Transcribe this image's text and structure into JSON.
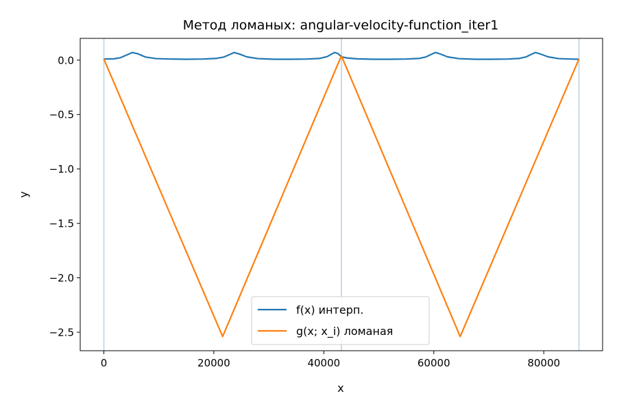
{
  "chart_data": {
    "type": "line",
    "title": "Метод ломаных: angular-velocity-function_iter1",
    "xlabel": "x",
    "ylabel": "y",
    "xlim": [
      -4300,
      90700
    ],
    "ylim": [
      -2.67,
      0.2
    ],
    "x_ticks": [
      0,
      20000,
      40000,
      60000,
      80000
    ],
    "x_tick_labels": [
      "0",
      "20000",
      "40000",
      "60000",
      "80000"
    ],
    "y_ticks": [
      0.0,
      -0.5,
      -1.0,
      -1.5,
      -2.0,
      -2.5
    ],
    "y_tick_labels": [
      "0.0",
      "−0.5",
      "−1.0",
      "−1.5",
      "−2.0",
      "−2.5"
    ],
    "grid": false,
    "legend_position": "bottom-center",
    "vertical_lines": {
      "x": [
        0,
        43200,
        86400
      ],
      "color": "#c6dbed"
    },
    "series": [
      {
        "name": "f(x) интерп.",
        "color": "#1f77b4",
        "points": [
          [
            0,
            0.01
          ],
          [
            1800,
            0.012
          ],
          [
            3000,
            0.022
          ],
          [
            4200,
            0.048
          ],
          [
            5200,
            0.07
          ],
          [
            6200,
            0.058
          ],
          [
            7600,
            0.028
          ],
          [
            9500,
            0.014
          ],
          [
            12000,
            0.01
          ],
          [
            15000,
            0.008
          ],
          [
            18000,
            0.01
          ],
          [
            20500,
            0.016
          ],
          [
            21800,
            0.028
          ],
          [
            22800,
            0.05
          ],
          [
            23700,
            0.07
          ],
          [
            24700,
            0.055
          ],
          [
            26000,
            0.03
          ],
          [
            28000,
            0.014
          ],
          [
            31000,
            0.008
          ],
          [
            34000,
            0.008
          ],
          [
            37000,
            0.01
          ],
          [
            39300,
            0.016
          ],
          [
            40600,
            0.032
          ],
          [
            41400,
            0.055
          ],
          [
            42000,
            0.07
          ],
          [
            42600,
            0.06
          ],
          [
            43200,
            0.03
          ],
          [
            44200,
            0.02
          ],
          [
            46000,
            0.012
          ],
          [
            49000,
            0.008
          ],
          [
            52000,
            0.008
          ],
          [
            55000,
            0.01
          ],
          [
            57400,
            0.016
          ],
          [
            58600,
            0.03
          ],
          [
            59500,
            0.052
          ],
          [
            60300,
            0.07
          ],
          [
            61200,
            0.056
          ],
          [
            62500,
            0.03
          ],
          [
            64500,
            0.014
          ],
          [
            67500,
            0.008
          ],
          [
            70500,
            0.008
          ],
          [
            73500,
            0.01
          ],
          [
            75600,
            0.016
          ],
          [
            76800,
            0.03
          ],
          [
            77700,
            0.052
          ],
          [
            78500,
            0.07
          ],
          [
            79400,
            0.056
          ],
          [
            80800,
            0.03
          ],
          [
            82700,
            0.014
          ],
          [
            84800,
            0.01
          ],
          [
            86400,
            0.008
          ]
        ]
      },
      {
        "name": "g(x; x_i) ломаная",
        "color": "#ff7f0e",
        "points": [
          [
            0,
            0.01
          ],
          [
            21600,
            -2.54
          ],
          [
            43200,
            0.04
          ],
          [
            64800,
            -2.54
          ],
          [
            86400,
            0.01
          ]
        ]
      }
    ]
  }
}
